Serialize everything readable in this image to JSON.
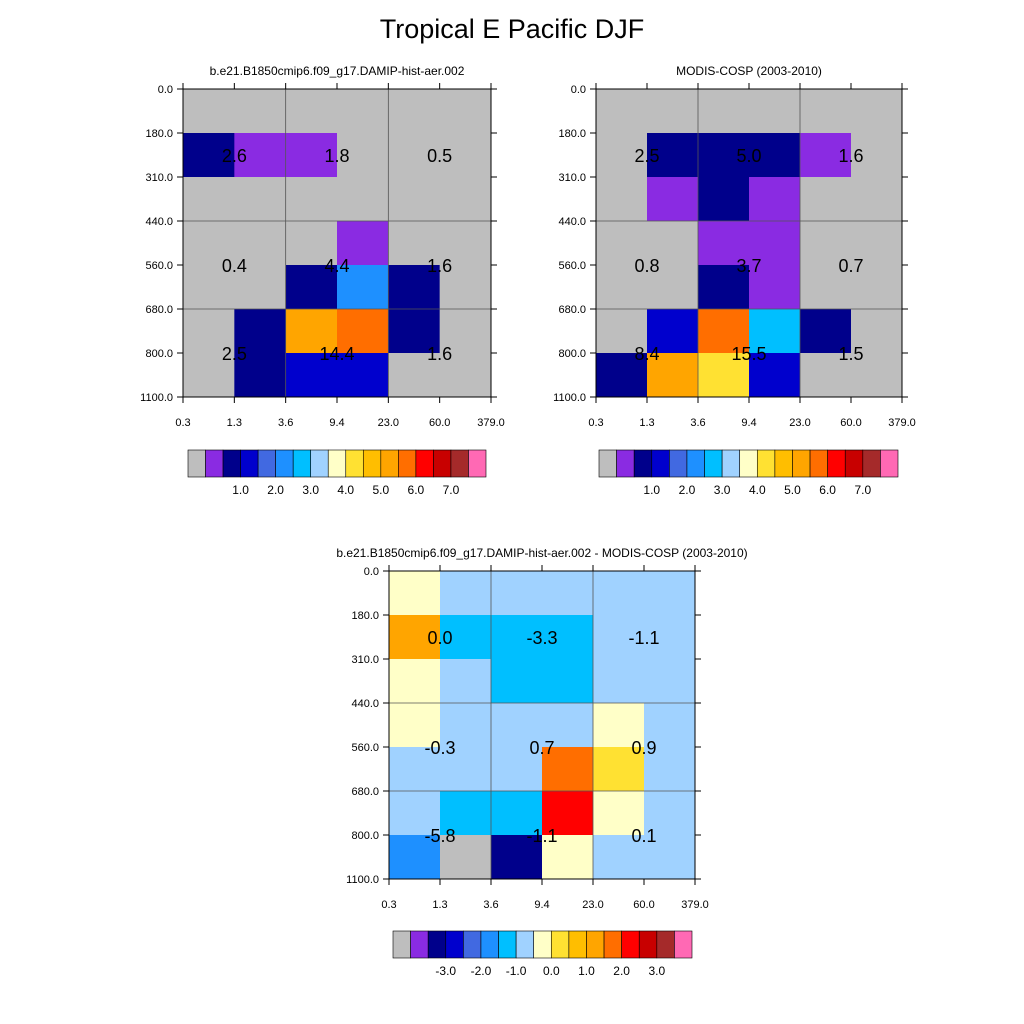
{
  "title": "Tropical E Pacific DJF",
  "chart_data": [
    {
      "type": "heatmap",
      "title": "b.e21.B1850cmip6.f09_g17.DAMIP-hist-aer.002",
      "x_ticks": [
        "0.3",
        "1.3",
        "3.6",
        "9.4",
        "23.0",
        "60.0",
        "379.0"
      ],
      "y_ticks": [
        "0.0",
        "180.0",
        "310.0",
        "440.0",
        "560.0",
        "680.0",
        "800.0",
        "1100.0"
      ],
      "cells": [
        [
          "#bebebe",
          "#bebebe",
          "#bebebe",
          "#bebebe",
          "#bebebe",
          "#bebebe"
        ],
        [
          "#00008b",
          "#8a2be2",
          "#8a2be2",
          "#bebebe",
          "#bebebe",
          "#bebebe"
        ],
        [
          "#bebebe",
          "#bebebe",
          "#bebebe",
          "#bebebe",
          "#bebebe",
          "#bebebe"
        ],
        [
          "#bebebe",
          "#bebebe",
          "#bebebe",
          "#8a2be2",
          "#bebebe",
          "#bebebe"
        ],
        [
          "#bebebe",
          "#bebebe",
          "#00008b",
          "#1e90ff",
          "#00008b",
          "#bebebe"
        ],
        [
          "#bebebe",
          "#00008b",
          "#ffa500",
          "#ff6e00",
          "#00008b",
          "#bebebe"
        ],
        [
          "#bebebe",
          "#00008b",
          "#0000cd",
          "#0000cd",
          "#bebebe",
          "#bebebe"
        ]
      ],
      "annotations": [
        [
          "2.6",
          "1.8",
          "0.5"
        ],
        [
          "0.4",
          "4.4",
          "1.6"
        ],
        [
          "2.5",
          "14.4",
          "1.6"
        ]
      ],
      "colorbar": {
        "colors": [
          "#bebebe",
          "#8a2be2",
          "#00008b",
          "#0000cd",
          "#4169e1",
          "#1e90ff",
          "#00bfff",
          "#a0d2ff",
          "#ffffc8",
          "#ffe132",
          "#ffbe00",
          "#ffa500",
          "#ff6e00",
          "#ff0000",
          "#c80000",
          "#a52a2a",
          "#ff69b4"
        ],
        "labels": [
          "1.0",
          "2.0",
          "3.0",
          "4.0",
          "5.0",
          "6.0",
          "7.0"
        ]
      }
    },
    {
      "type": "heatmap",
      "title": "MODIS-COSP (2003-2010)",
      "x_ticks": [
        "0.3",
        "1.3",
        "3.6",
        "9.4",
        "23.0",
        "60.0",
        "379.0"
      ],
      "y_ticks": [
        "0.0",
        "180.0",
        "310.0",
        "440.0",
        "560.0",
        "680.0",
        "800.0",
        "1100.0"
      ],
      "cells": [
        [
          "#bebebe",
          "#bebebe",
          "#bebebe",
          "#bebebe",
          "#bebebe",
          "#bebebe"
        ],
        [
          "#bebebe",
          "#00008b",
          "#00008b",
          "#00008b",
          "#8a2be2",
          "#bebebe"
        ],
        [
          "#bebebe",
          "#8a2be2",
          "#00008b",
          "#8a2be2",
          "#bebebe",
          "#bebebe"
        ],
        [
          "#bebebe",
          "#bebebe",
          "#8a2be2",
          "#8a2be2",
          "#bebebe",
          "#bebebe"
        ],
        [
          "#bebebe",
          "#bebebe",
          "#00008b",
          "#8a2be2",
          "#bebebe",
          "#bebebe"
        ],
        [
          "#bebebe",
          "#0000cd",
          "#ff6e00",
          "#00bfff",
          "#00008b",
          "#bebebe"
        ],
        [
          "#00008b",
          "#ffa500",
          "#ffe132",
          "#0000cd",
          "#bebebe",
          "#bebebe"
        ]
      ],
      "annotations": [
        [
          "2.5",
          "5.0",
          "1.6"
        ],
        [
          "0.8",
          "3.7",
          "0.7"
        ],
        [
          "8.4",
          "15.5",
          "1.5"
        ]
      ],
      "colorbar": {
        "colors": [
          "#bebebe",
          "#8a2be2",
          "#00008b",
          "#0000cd",
          "#4169e1",
          "#1e90ff",
          "#00bfff",
          "#a0d2ff",
          "#ffffc8",
          "#ffe132",
          "#ffbe00",
          "#ffa500",
          "#ff6e00",
          "#ff0000",
          "#c80000",
          "#a52a2a",
          "#ff69b4"
        ],
        "labels": [
          "1.0",
          "2.0",
          "3.0",
          "4.0",
          "5.0",
          "6.0",
          "7.0"
        ]
      }
    },
    {
      "type": "heatmap",
      "title": "b.e21.B1850cmip6.f09_g17.DAMIP-hist-aer.002 - MODIS-COSP (2003-2010)",
      "x_ticks": [
        "0.3",
        "1.3",
        "3.6",
        "9.4",
        "23.0",
        "60.0",
        "379.0"
      ],
      "y_ticks": [
        "0.0",
        "180.0",
        "310.0",
        "440.0",
        "560.0",
        "680.0",
        "800.0",
        "1100.0"
      ],
      "cells": [
        [
          "#ffffc8",
          "#a0d2ff",
          "#a0d2ff",
          "#a0d2ff",
          "#a0d2ff",
          "#a0d2ff"
        ],
        [
          "#ffa500",
          "#00bfff",
          "#00bfff",
          "#00bfff",
          "#a0d2ff",
          "#a0d2ff"
        ],
        [
          "#ffffc8",
          "#a0d2ff",
          "#00bfff",
          "#00bfff",
          "#a0d2ff",
          "#a0d2ff"
        ],
        [
          "#ffffc8",
          "#a0d2ff",
          "#a0d2ff",
          "#a0d2ff",
          "#ffffc8",
          "#a0d2ff"
        ],
        [
          "#a0d2ff",
          "#a0d2ff",
          "#a0d2ff",
          "#ff6e00",
          "#ffe132",
          "#a0d2ff"
        ],
        [
          "#a0d2ff",
          "#00bfff",
          "#00bfff",
          "#ff0000",
          "#ffffc8",
          "#a0d2ff"
        ],
        [
          "#1e90ff",
          "#bebebe",
          "#00008b",
          "#ffffc8",
          "#a0d2ff",
          "#a0d2ff"
        ]
      ],
      "annotations": [
        [
          "0.0",
          "-3.3",
          "-1.1"
        ],
        [
          "-0.3",
          "0.7",
          "0.9"
        ],
        [
          "-5.8",
          "-1.1",
          "0.1"
        ]
      ],
      "colorbar": {
        "colors": [
          "#bebebe",
          "#8a2be2",
          "#00008b",
          "#0000cd",
          "#4169e1",
          "#1e90ff",
          "#00bfff",
          "#a0d2ff",
          "#ffffc8",
          "#ffe132",
          "#ffbe00",
          "#ffa500",
          "#ff6e00",
          "#ff0000",
          "#c80000",
          "#a52a2a",
          "#ff69b4"
        ],
        "labels": [
          "-3.0",
          "-2.0",
          "-1.0",
          "0.0",
          "1.0",
          "2.0",
          "3.0"
        ]
      }
    }
  ]
}
